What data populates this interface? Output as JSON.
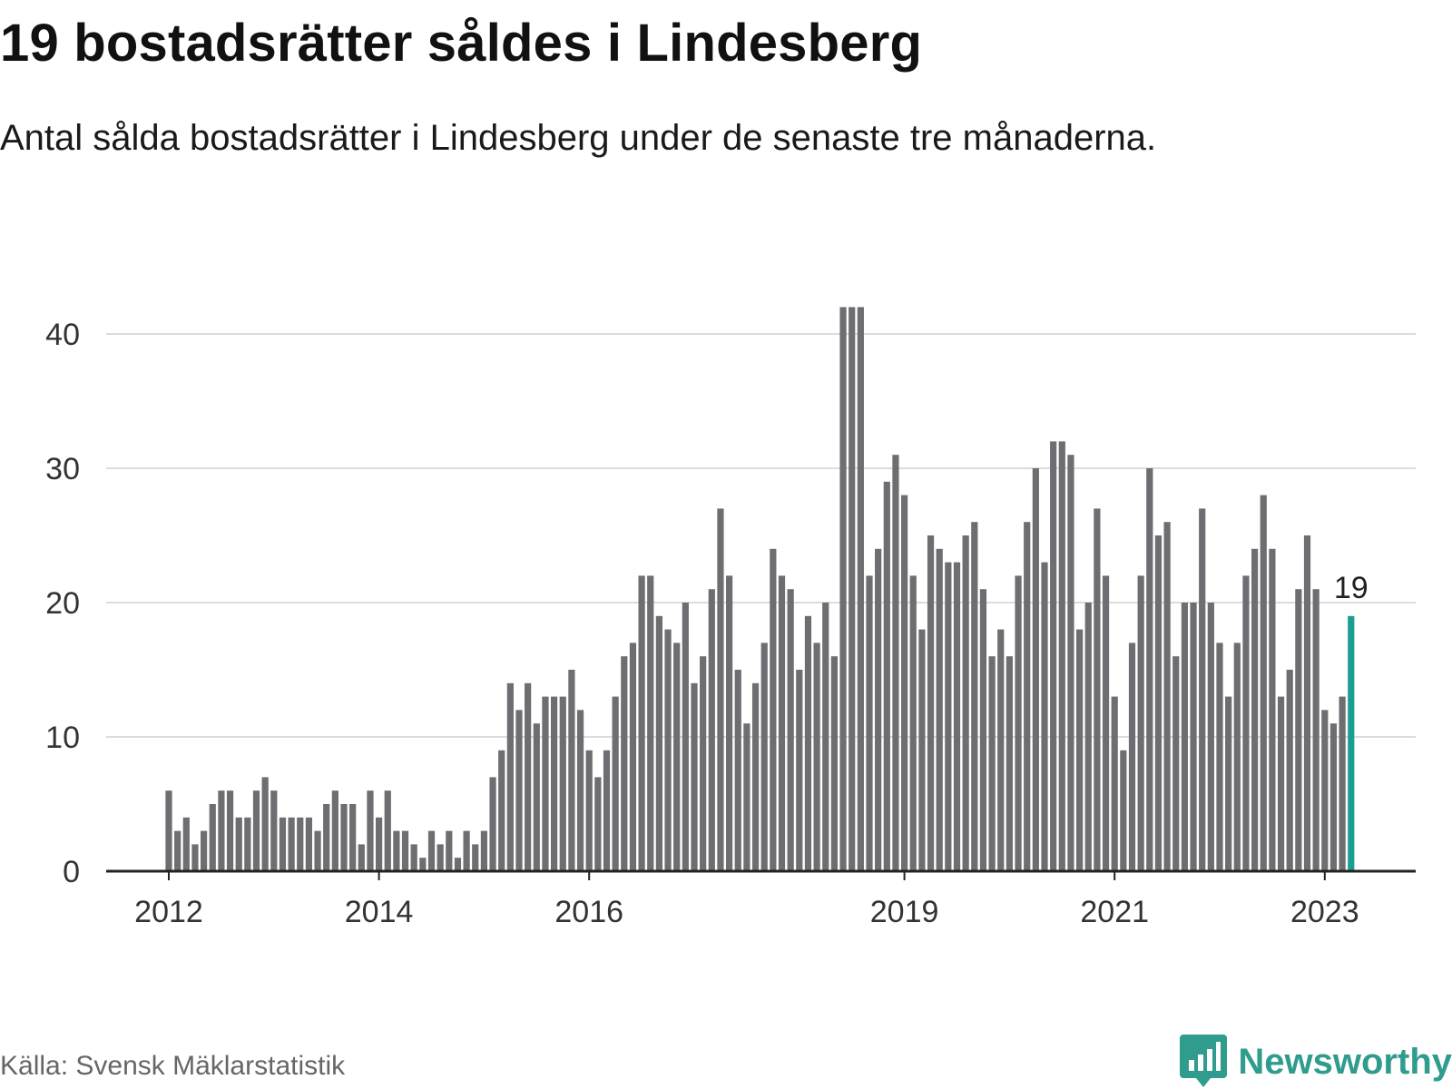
{
  "title": "19 bostadsrätter såldes i Lindesberg",
  "subtitle": "Antal sålda bostadsrätter i Lindesberg under de senaste tre månaderna.",
  "source": "Källa: Svensk Mäklarstatistik",
  "brand": "Newsworthy",
  "colors": {
    "bar": "#6d6d72",
    "highlight": "#1a9e92",
    "grid": "#dcdcdc",
    "axis": "#222222",
    "brand": "#2f9c8e"
  },
  "chart_data": {
    "type": "bar",
    "ylim": [
      0,
      42
    ],
    "yticks": [
      0,
      10,
      20,
      30,
      40
    ],
    "xtick_labels": [
      {
        "label": "2012",
        "index": 0
      },
      {
        "label": "2014",
        "index": 24
      },
      {
        "label": "2016",
        "index": 48
      },
      {
        "label": "2019",
        "index": 84
      },
      {
        "label": "2021",
        "index": 108
      },
      {
        "label": "2023",
        "index": 132
      }
    ],
    "values": [
      6,
      3,
      4,
      2,
      3,
      5,
      6,
      6,
      4,
      4,
      6,
      7,
      6,
      4,
      4,
      4,
      4,
      3,
      5,
      6,
      5,
      5,
      2,
      6,
      4,
      6,
      3,
      3,
      2,
      1,
      3,
      2,
      3,
      1,
      3,
      2,
      3,
      7,
      9,
      14,
      12,
      14,
      11,
      13,
      13,
      13,
      15,
      12,
      9,
      7,
      9,
      13,
      16,
      17,
      22,
      22,
      19,
      18,
      17,
      20,
      14,
      16,
      21,
      27,
      22,
      15,
      11,
      14,
      17,
      24,
      22,
      21,
      15,
      19,
      17,
      20,
      16,
      42,
      42,
      42,
      22,
      24,
      29,
      31,
      28,
      22,
      18,
      25,
      24,
      23,
      23,
      25,
      26,
      21,
      16,
      18,
      16,
      22,
      26,
      30,
      23,
      32,
      32,
      31,
      18,
      20,
      27,
      22,
      13,
      9,
      17,
      22,
      30,
      25,
      26,
      16,
      20,
      20,
      27,
      20,
      17,
      13,
      17,
      22,
      24,
      28,
      24,
      13,
      15,
      21,
      25,
      21,
      12,
      11,
      13,
      19
    ],
    "highlight_index": 135,
    "highlight_label": "19"
  }
}
